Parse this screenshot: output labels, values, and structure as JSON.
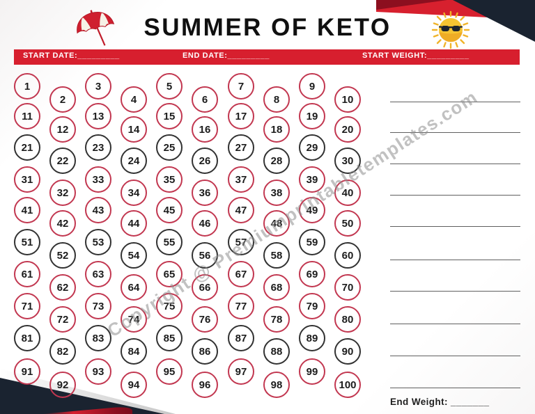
{
  "header": {
    "title": "SUMMER OF KETO",
    "banner": {
      "start_date": "START DATE:_________",
      "end_date": "END DATE:_________",
      "start_weight": "START WEIGHT:_________"
    }
  },
  "icons": {
    "umbrella": "beach-umbrella-icon",
    "sun": "sun-with-sunglasses-icon"
  },
  "colors": {
    "banner_red": "#d71f2e",
    "circle_red": "#c23750",
    "circle_black": "#323232",
    "navy": "#1a2330",
    "maroon": "#8c0f1f",
    "line_gray": "#5f5f5f",
    "watermark_gray": "#8f8f8f"
  },
  "tracker": {
    "numbers": [
      1,
      2,
      3,
      4,
      5,
      6,
      7,
      8,
      9,
      10,
      11,
      12,
      13,
      14,
      15,
      16,
      17,
      18,
      19,
      20,
      21,
      22,
      23,
      24,
      25,
      26,
      27,
      28,
      29,
      30,
      31,
      32,
      33,
      34,
      35,
      36,
      37,
      38,
      39,
      40,
      41,
      42,
      43,
      44,
      45,
      46,
      47,
      48,
      49,
      50,
      51,
      52,
      53,
      54,
      55,
      56,
      57,
      58,
      59,
      60,
      61,
      62,
      63,
      64,
      65,
      66,
      67,
      68,
      69,
      70,
      71,
      72,
      73,
      74,
      75,
      76,
      77,
      78,
      79,
      80,
      81,
      82,
      83,
      84,
      85,
      86,
      87,
      88,
      89,
      90,
      91,
      92,
      93,
      94,
      95,
      96,
      97,
      98,
      99,
      100
    ],
    "row_colors": [
      "red",
      "red",
      "black",
      "red",
      "red",
      "black",
      "red",
      "red",
      "black",
      "red"
    ]
  },
  "notes": {
    "line_count": 10
  },
  "footer": {
    "end_weight": "End Weight: _______"
  },
  "watermark": "Copyright @ Premiumprintabletemplates.com"
}
